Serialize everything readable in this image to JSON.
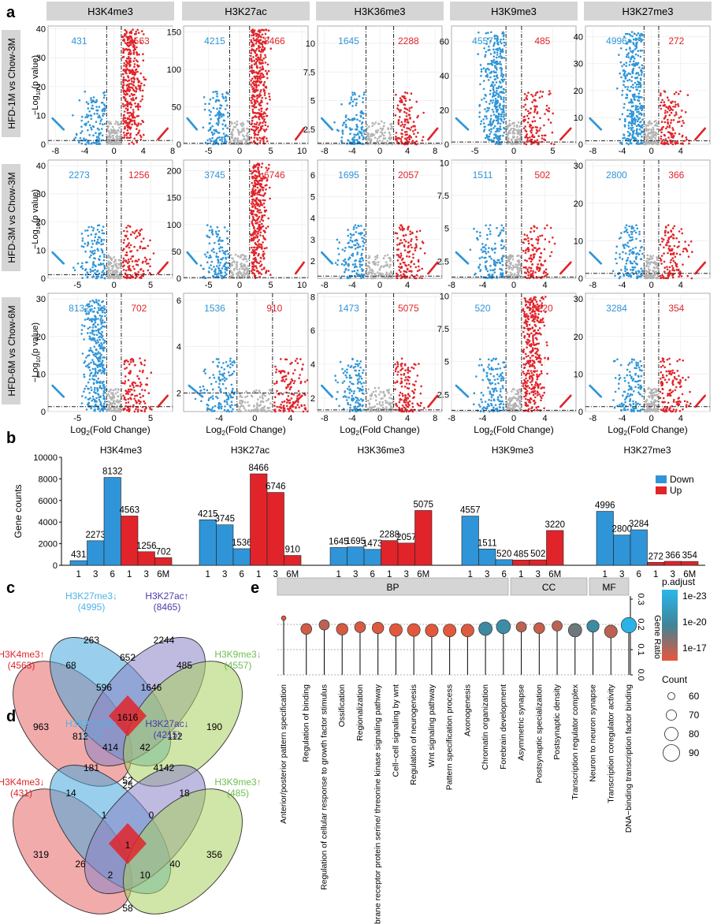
{
  "panel_labels": {
    "a": "a",
    "b": "b",
    "c": "c",
    "d": "d",
    "e": "e"
  },
  "colors": {
    "down": "#2f95d8",
    "up": "#e0242a",
    "ns": "#b4b4b4",
    "strip": "#d5d5d5"
  },
  "volcano": {
    "marks": [
      "H3K4me3",
      "H3K27ac",
      "H3K36me3",
      "H3K9me3",
      "H3K27me3"
    ],
    "comparisons": [
      "HFD-1M vs Chow-3M",
      "HFD-3M vs Chow-3M",
      "HFD-6M vs Chow-6M"
    ],
    "xlabel": "Log2(Fold Change)",
    "ylabel": "−Log10(p value)"
  },
  "chart_data": [
    {
      "type": "scatter",
      "panel": "a",
      "xlabel": "Log2(Fold Change)",
      "ylabel": "−Log10(p value)",
      "facets": [
        {
          "row": 0,
          "col": 0,
          "xlim": [
            -9,
            8
          ],
          "ylim": [
            0,
            41
          ],
          "xticks": [
            -8,
            -4,
            0,
            4,
            8
          ],
          "yticks": [
            0,
            10,
            20,
            30,
            40
          ],
          "down": 431,
          "up": 4563,
          "vline": [
            -1,
            1
          ],
          "hline": 1.3,
          "updense": true
        },
        {
          "row": 0,
          "col": 1,
          "xlim": [
            -9,
            11
          ],
          "ylim": [
            0,
            158
          ],
          "xticks": [
            -5,
            0,
            5,
            10
          ],
          "yticks": [
            0,
            50,
            100,
            150
          ],
          "down": 4215,
          "up": 8466,
          "vline": [
            -1.6,
            1.6
          ],
          "hline": 1.3,
          "updense": true
        },
        {
          "row": 0,
          "col": 2,
          "xlim": [
            -9,
            9
          ],
          "ylim": [
            1.2,
            11.5
          ],
          "xticks": [
            -8,
            -4,
            0,
            4,
            8
          ],
          "yticks": [
            2.5,
            5.0,
            7.5,
            10.0
          ],
          "down": 1645,
          "up": 2288,
          "vline": [
            -2,
            2
          ],
          "hline": 1.3
        },
        {
          "row": 0,
          "col": 3,
          "xlim": [
            -8,
            8
          ],
          "ylim": [
            0,
            69
          ],
          "xticks": [
            -5,
            0,
            5
          ],
          "yticks": [
            0,
            20,
            40,
            60
          ],
          "down": 4557,
          "up": 485,
          "vline": [
            -1,
            1
          ],
          "hline": 1.3,
          "downdense": true
        },
        {
          "row": 0,
          "col": 4,
          "xlim": [
            -9,
            8
          ],
          "ylim": [
            0,
            44
          ],
          "xticks": [
            -8,
            -4,
            0,
            4
          ],
          "yticks": [
            0,
            10,
            20,
            30,
            40
          ],
          "down": 4996,
          "up": 272,
          "vline": [
            -1,
            1
          ],
          "hline": 1.3,
          "downdense": true
        },
        {
          "row": 1,
          "col": 0,
          "xlim": [
            -9,
            8
          ],
          "ylim": [
            0,
            42
          ],
          "xticks": [
            -5,
            0,
            5
          ],
          "yticks": [
            0,
            10,
            20,
            30,
            40
          ],
          "down": 2273,
          "up": 1256,
          "vline": [
            -1,
            1
          ],
          "hline": 1.3
        },
        {
          "row": 1,
          "col": 1,
          "xlim": [
            -9,
            11
          ],
          "ylim": [
            0,
            220
          ],
          "xticks": [
            -5,
            0,
            5,
            10
          ],
          "yticks": [
            0,
            50,
            100,
            150,
            200
          ],
          "down": 3745,
          "up": 6746,
          "vline": [
            -1.6,
            1.6
          ],
          "hline": 1.3,
          "updense": true
        },
        {
          "row": 1,
          "col": 2,
          "xlim": [
            -9,
            9
          ],
          "ylim": [
            1.2,
            6.7
          ],
          "xticks": [
            -8,
            -4,
            0,
            4
          ],
          "yticks": [
            2,
            3,
            4,
            5,
            6
          ],
          "down": 1695,
          "up": 2057,
          "vline": [
            -2,
            2
          ],
          "hline": 1.3
        },
        {
          "row": 1,
          "col": 3,
          "xlim": [
            -8,
            8
          ],
          "ylim": [
            1.2,
            10.2
          ],
          "xticks": [
            -8,
            -4,
            0,
            4
          ],
          "yticks": [
            2.5,
            5.0,
            7.5,
            10.0
          ],
          "down": 1511,
          "up": 502,
          "vline": [
            -1,
            1
          ],
          "hline": 1.3
        },
        {
          "row": 1,
          "col": 4,
          "xlim": [
            -9,
            8
          ],
          "ylim": [
            0,
            31.5
          ],
          "xticks": [
            -8,
            -4,
            0,
            4
          ],
          "yticks": [
            0,
            10,
            20,
            30
          ],
          "down": 2800,
          "up": 366,
          "vline": [
            -1,
            1
          ],
          "hline": 1.3
        },
        {
          "row": 2,
          "col": 0,
          "xlim": [
            -9,
            8
          ],
          "ylim": [
            0,
            31.5
          ],
          "xticks": [
            -5,
            0,
            5
          ],
          "yticks": [
            0,
            10,
            20,
            30
          ],
          "down": 8132,
          "up": 702,
          "vline": [
            -1,
            1
          ],
          "hline": 1.3,
          "downdense": true
        },
        {
          "row": 2,
          "col": 1,
          "xlim": [
            -8,
            6
          ],
          "ylim": [
            1.2,
            6.3
          ],
          "xticks": [
            -4,
            0,
            4
          ],
          "yticks": [
            2,
            4,
            6
          ],
          "down": 1536,
          "up": 910,
          "vline": [
            -2,
            2
          ],
          "hline": 2.0
        },
        {
          "row": 2,
          "col": 2,
          "xlim": [
            -9,
            9
          ],
          "ylim": [
            1.2,
            8.2
          ],
          "xticks": [
            -8,
            -4,
            0,
            4,
            8
          ],
          "yticks": [
            2,
            4,
            6,
            8
          ],
          "down": 1473,
          "up": 5075,
          "vline": [
            -2,
            2
          ],
          "hline": 1.3
        },
        {
          "row": 2,
          "col": 3,
          "xlim": [
            -8,
            8
          ],
          "ylim": [
            1.2,
            10.2
          ],
          "xticks": [
            -8,
            -4,
            0,
            4
          ],
          "yticks": [
            2.5,
            5.0,
            7.5,
            10.0
          ],
          "down": 520,
          "up": 3220,
          "vline": [
            -1,
            1
          ],
          "hline": 1.3,
          "updense": true
        },
        {
          "row": 2,
          "col": 4,
          "xlim": [
            -9,
            8
          ],
          "ylim": [
            0,
            31.5
          ],
          "xticks": [
            -8,
            -4,
            0,
            4
          ],
          "yticks": [
            0,
            10,
            20,
            30
          ],
          "down": 3284,
          "up": 354,
          "vline": [
            -1,
            1
          ],
          "hline": 1.3
        }
      ]
    },
    {
      "type": "bar",
      "panel": "b",
      "ylabel": "Gene counts",
      "ylim": [
        0,
        10000
      ],
      "yticks": [
        0,
        2000,
        4000,
        6000,
        8000,
        10000
      ],
      "categories": [
        "1",
        "3",
        "6",
        "1",
        "3",
        "6M"
      ],
      "legend": [
        {
          "name": "Down",
          "color": "#2f95d8"
        },
        {
          "name": "Up",
          "color": "#e0242a"
        }
      ],
      "groups": [
        {
          "mark": "H3K4me3",
          "down": [
            431,
            2273,
            8132
          ],
          "up": [
            4563,
            1256,
            702
          ]
        },
        {
          "mark": "H3K27ac",
          "down": [
            4215,
            3745,
            1536
          ],
          "up": [
            8466,
            6746,
            910
          ]
        },
        {
          "mark": "H3K36me3",
          "down": [
            1645,
            1695,
            1473
          ],
          "up": [
            2288,
            2057,
            5075
          ]
        },
        {
          "mark": "H3K9me3",
          "down": [
            4557,
            1511,
            520
          ],
          "up": [
            485,
            502,
            3220
          ]
        },
        {
          "mark": "H3K27me3",
          "down": [
            4996,
            2800,
            3284
          ],
          "up": [
            272,
            366,
            354
          ]
        }
      ]
    },
    {
      "type": "scatter",
      "panel": "e",
      "ylabel": "Gene Ratio",
      "ylim": [
        0,
        0.3
      ],
      "yticks": [
        0.0,
        0.1,
        0.2,
        0.3
      ],
      "facets": [
        "BP",
        "CC",
        "MF"
      ],
      "legend_color_title": "p.adjust",
      "legend_color_ticks": [
        "1e-23",
        "1e-20",
        "1e-17"
      ],
      "legend_size_title": "Count",
      "legend_size_ticks": [
        60,
        70,
        80,
        90
      ],
      "terms": [
        {
          "term": "Anterior/posterior pattern specification",
          "facet": "BP",
          "ratio": 0.225,
          "count": 52,
          "logp": -17.0
        },
        {
          "term": "Regulation of binding",
          "facet": "BP",
          "ratio": 0.182,
          "count": 72,
          "logp": -17.4
        },
        {
          "term": "Regulation of cellular response to growth factor stimulus",
          "facet": "BP",
          "ratio": 0.198,
          "count": 70,
          "logp": -17.8
        },
        {
          "term": "Ossification",
          "facet": "BP",
          "ratio": 0.181,
          "count": 74,
          "logp": -17.3
        },
        {
          "term": "Regionalization",
          "facet": "BP",
          "ratio": 0.189,
          "count": 72,
          "logp": -17.3
        },
        {
          "term": "Transmembrane receptor protein serine/ threonine kinase signaling pathway",
          "facet": "BP",
          "ratio": 0.186,
          "count": 74,
          "logp": -17.2
        },
        {
          "term": "Cell−cell signaling by wnt",
          "facet": "BP",
          "ratio": 0.178,
          "count": 78,
          "logp": -17.1
        },
        {
          "term": "Regulation of neurogenesis",
          "facet": "BP",
          "ratio": 0.178,
          "count": 78,
          "logp": -17.1
        },
        {
          "term": "Wnt signaling pathway",
          "facet": "BP",
          "ratio": 0.176,
          "count": 78,
          "logp": -17.1
        },
        {
          "term": "Pattern specification process",
          "facet": "BP",
          "ratio": 0.176,
          "count": 78,
          "logp": -17.1
        },
        {
          "term": "Axonogenesis",
          "facet": "BP",
          "ratio": 0.176,
          "count": 78,
          "logp": -17.2
        },
        {
          "term": "Chromatin organization",
          "facet": "BP",
          "ratio": 0.183,
          "count": 80,
          "logp": -20.3
        },
        {
          "term": "Forebrain development",
          "facet": "BP",
          "ratio": 0.191,
          "count": 82,
          "logp": -20.6
        },
        {
          "term": "Asymmetric synapse",
          "facet": "CC",
          "ratio": 0.19,
          "count": 70,
          "logp": -17.8
        },
        {
          "term": "Postsynaptic specialization",
          "facet": "CC",
          "ratio": 0.185,
          "count": 72,
          "logp": -17.6
        },
        {
          "term": "Postsynaptic density",
          "facet": "CC",
          "ratio": 0.194,
          "count": 70,
          "logp": -17.8
        },
        {
          "term": "Transcription regulator complex",
          "facet": "CC",
          "ratio": 0.177,
          "count": 80,
          "logp": -19.2
        },
        {
          "term": "Neuron to neuron synapse",
          "facet": "CC",
          "ratio": 0.193,
          "count": 76,
          "logp": -20.4
        },
        {
          "term": "Transcription coregulator activity",
          "facet": "MF",
          "ratio": 0.172,
          "count": 78,
          "logp": -17.8
        },
        {
          "term": "DNA−binding transcription factor binding",
          "facet": "MF",
          "ratio": 0.197,
          "count": 86,
          "logp": -22.8
        }
      ]
    }
  ],
  "venn_c": {
    "labels": [
      {
        "name": "H3K4me3↑",
        "count": "(4563)",
        "color": "#e0242a"
      },
      {
        "name": "H3K27me3↓",
        "count": "(4995)",
        "color": "#4fb3e6"
      },
      {
        "name": "H3K27ac↑",
        "count": "(8465)",
        "color": "#4b3aa6"
      },
      {
        "name": "H3K9me3↓",
        "count": "(4557)",
        "color": "#6fbe52"
      }
    ],
    "regions": {
      "a": "963",
      "b": "263",
      "c": "2244",
      "d": "190",
      "ab": "68",
      "bc": "652",
      "cd": "485",
      "abc": "596",
      "bcd": "1646",
      "all": "1616",
      "ac": "812",
      "bd": "112",
      "acd": "414",
      "abd": "42",
      "ad": "52"
    }
  },
  "venn_d": {
    "labels": [
      {
        "name": "H3K4me3↓",
        "count": "(431)",
        "color": "#e0242a"
      },
      {
        "name": "H3K27me3↑",
        "count": "(272)",
        "color": "#4fb3e6"
      },
      {
        "name": "H3K27ac↓",
        "count": "(4215)",
        "color": "#4b3aa6"
      },
      {
        "name": "H3K9me3↑",
        "count": "(485)",
        "color": "#6fbe52"
      }
    ],
    "regions": {
      "a": "319",
      "b": "181",
      "c": "4142",
      "d": "356",
      "ab": "14",
      "bc": "25",
      "cd": "18",
      "abc": "1",
      "bcd": "0",
      "all": "1",
      "ac": "26",
      "bd": "40",
      "acd": "2",
      "abd": "10",
      "ad": "58"
    }
  }
}
